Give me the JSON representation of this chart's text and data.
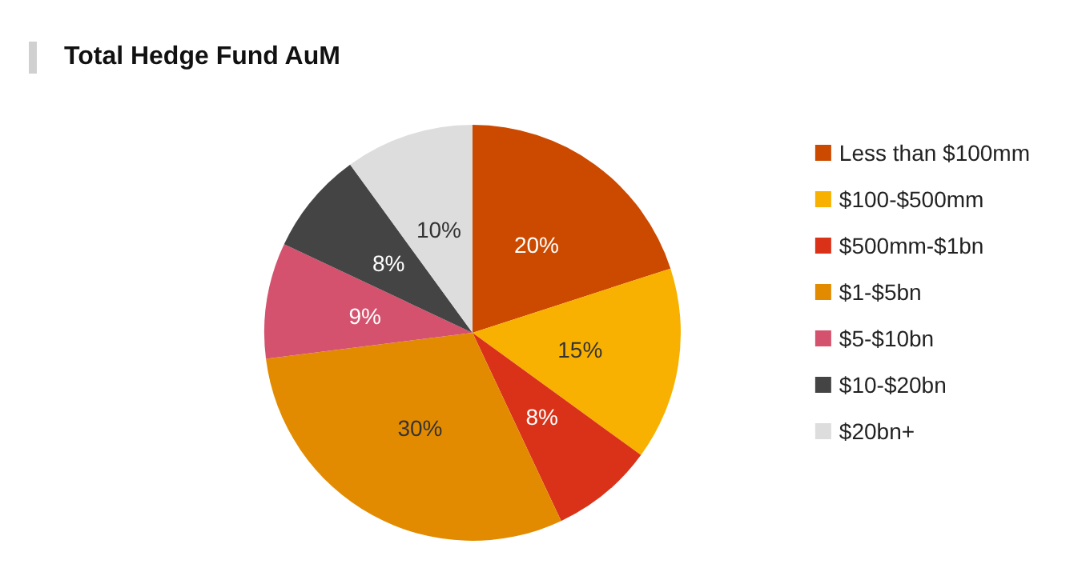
{
  "chart_data": {
    "type": "pie",
    "title": "Total Hedge Fund AuM",
    "categories": [
      "Less than $100mm",
      "$100-$500mm",
      "$500mm-$1bn",
      "$1-$5bn",
      "$5-$10bn",
      "$10-$20bn",
      "$20bn+"
    ],
    "values": [
      20,
      15,
      8,
      30,
      9,
      8,
      10
    ],
    "colors": [
      "#cc4a00",
      "#f8b100",
      "#d93219",
      "#e38b00",
      "#d4526e",
      "#444444",
      "#dddddd"
    ],
    "value_labels": [
      "20%",
      "15%",
      "8%",
      "30%",
      "9%",
      "8%",
      "10%"
    ],
    "legend": "right"
  }
}
